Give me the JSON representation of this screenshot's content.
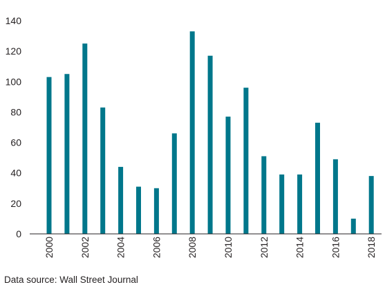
{
  "chart_data": {
    "type": "bar",
    "title": "",
    "xlabel": "",
    "ylabel": "",
    "categories": [
      "2000",
      "2001",
      "2002",
      "2003",
      "2004",
      "2005",
      "2006",
      "2007",
      "2008",
      "2009",
      "2010",
      "2011",
      "2012",
      "2013",
      "2014",
      "2015",
      "2016",
      "2017",
      "2018"
    ],
    "x_tick_labels": [
      "2000",
      "2002",
      "2004",
      "2006",
      "2008",
      "2010",
      "2012",
      "2014",
      "2016",
      "2018"
    ],
    "values": [
      103,
      105,
      125,
      83,
      44,
      31,
      30,
      66,
      133,
      117,
      77,
      96,
      51,
      39,
      39,
      73,
      49,
      10,
      38
    ],
    "ylim": [
      0,
      140
    ],
    "y_ticks": [
      0,
      20,
      40,
      60,
      80,
      100,
      120,
      140
    ],
    "grid": false,
    "legend": "none",
    "bar_color": "#00778b",
    "axis_color": "#231f20"
  },
  "footer": {
    "source_text": "Data source: Wall Street Journal"
  }
}
